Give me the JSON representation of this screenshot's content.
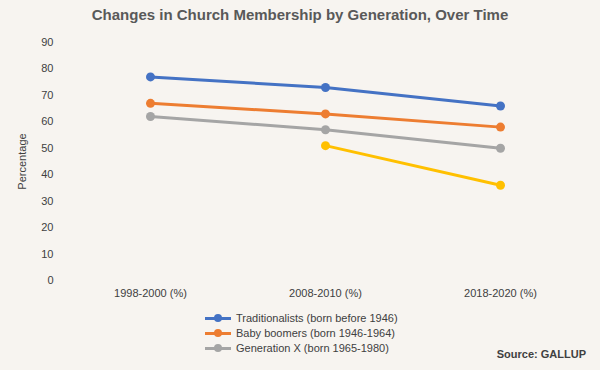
{
  "chart_data": {
    "type": "line",
    "title": "Changes in Church Membership by Generation, Over Time",
    "y_label": "Percentage",
    "categories": [
      "1998-2000 (%)",
      "2008-2010 (%)",
      "2018-2020 (%)"
    ],
    "series": [
      {
        "name": "Traditionalists (born before 1946)",
        "color": "#4472c4",
        "values": [
          77,
          73,
          66
        ]
      },
      {
        "name": "Baby boomers (born 1946-1964)",
        "color": "#ed7d31",
        "values": [
          67,
          63,
          58
        ]
      },
      {
        "name": "Generation X (born 1965-1980)",
        "color": "#a5a5a5",
        "values": [
          62,
          57,
          50
        ]
      },
      {
        "color": "#ffc000",
        "values": [
          null,
          51,
          36
        ]
      }
    ],
    "ylim": [
      0,
      90
    ],
    "yticks": [
      0,
      10,
      20,
      30,
      40,
      50,
      60,
      70,
      80,
      90
    ],
    "grid": false,
    "legend": "bottom",
    "marker": "circle",
    "source": "Source: GALLUP"
  }
}
